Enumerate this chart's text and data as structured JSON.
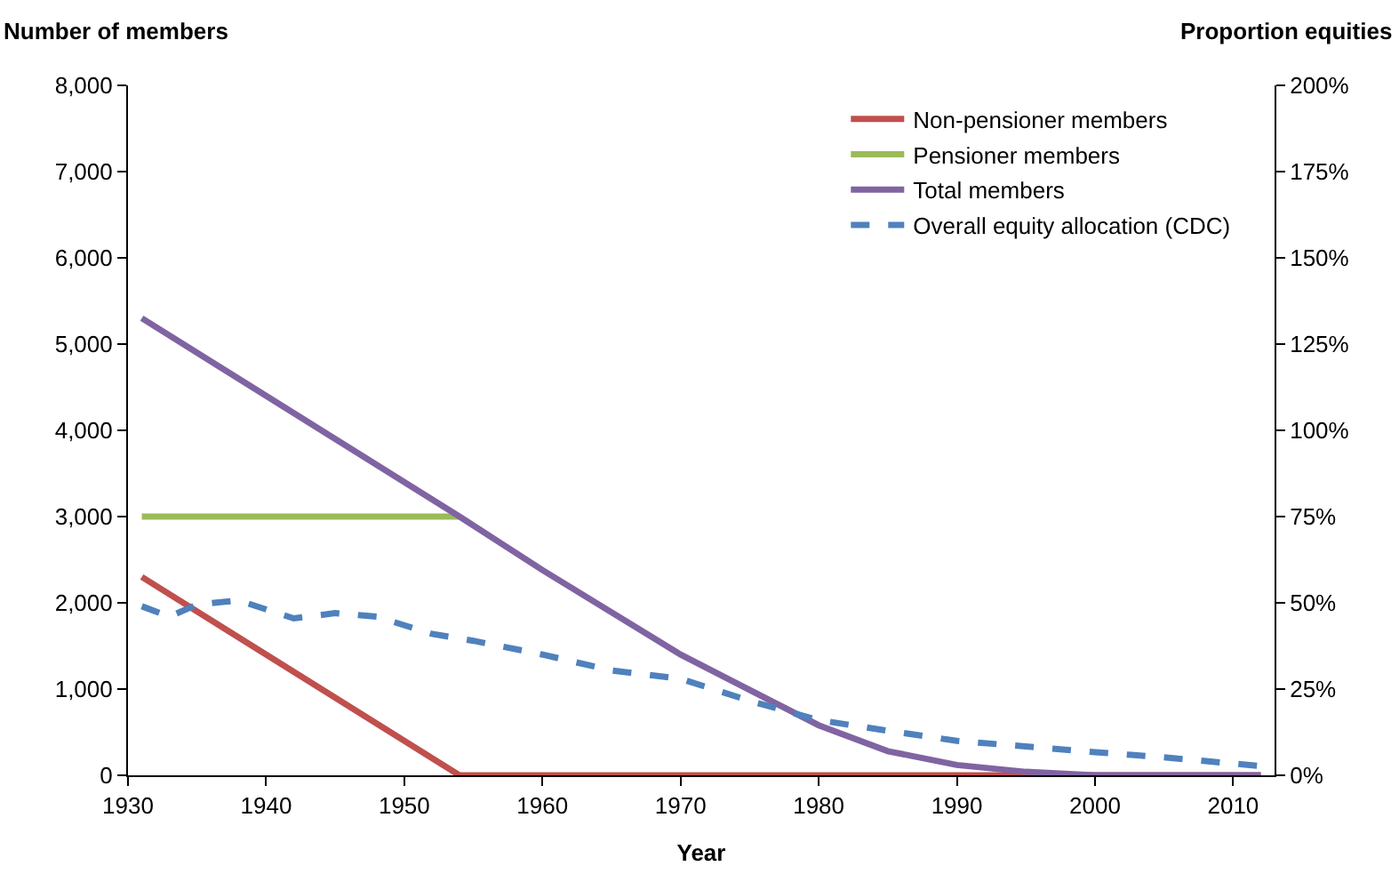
{
  "chart_data": {
    "type": "line",
    "xlabel": "Year",
    "ylabel": "Number of members",
    "y2label": "Proportion equities",
    "xlim": [
      1930,
      2013
    ],
    "xticks": [
      1930,
      1940,
      1950,
      1960,
      1970,
      1980,
      1990,
      2000,
      2010
    ],
    "ylim": [
      0,
      8000
    ],
    "yticks": [
      {
        "value": 0,
        "label": "0"
      },
      {
        "value": 1000,
        "label": "1,000"
      },
      {
        "value": 2000,
        "label": "2,000"
      },
      {
        "value": 3000,
        "label": "3,000"
      },
      {
        "value": 4000,
        "label": "4,000"
      },
      {
        "value": 5000,
        "label": "5,000"
      },
      {
        "value": 6000,
        "label": "6,000"
      },
      {
        "value": 7000,
        "label": "7,000"
      },
      {
        "value": 8000,
        "label": "8,000"
      }
    ],
    "y2lim": [
      0,
      200
    ],
    "y2ticks": [
      {
        "value": 0,
        "label": "0%"
      },
      {
        "value": 25,
        "label": "25%"
      },
      {
        "value": 50,
        "label": "50%"
      },
      {
        "value": 75,
        "label": "75%"
      },
      {
        "value": 100,
        "label": "100%"
      },
      {
        "value": 125,
        "label": "125%"
      },
      {
        "value": 150,
        "label": "150%"
      },
      {
        "value": 175,
        "label": "175%"
      },
      {
        "value": 200,
        "label": "200%"
      }
    ],
    "legend": "top right",
    "marker": "none",
    "series": [
      {
        "name": "Non-pensioner members",
        "color": "#c0504d",
        "x": [
          1931,
          1954,
          2012
        ],
        "values": [
          2300,
          0,
          0
        ]
      },
      {
        "name": "Pensioner members",
        "color": "#9bbb59",
        "x": [
          1931,
          1954
        ],
        "values": [
          3000,
          3000
        ]
      },
      {
        "name": "Total members",
        "color": "#8064a2",
        "x": [
          1931,
          1954,
          1960,
          1970,
          1980,
          1985,
          1990,
          1995,
          2000,
          2012
        ],
        "values": [
          5300,
          3000,
          2380,
          1400,
          580,
          280,
          120,
          40,
          0,
          0
        ]
      },
      {
        "name": "Overall equity allocation (CDC)",
        "color": "#4f81bd",
        "axis": "y2",
        "line_style": "dashed",
        "x": [
          1931,
          1933,
          1935,
          1938,
          1942,
          1945,
          1948,
          1952,
          1955,
          1960,
          1965,
          1970,
          1975,
          1980,
          1985,
          1990,
          2000,
          2005,
          2012
        ],
        "values": [
          49,
          46,
          49.5,
          50.7,
          45.5,
          47,
          46,
          41,
          39,
          35,
          30.4,
          28,
          21.6,
          16,
          12.9,
          10,
          6.7,
          5.2,
          2.7
        ]
      }
    ]
  }
}
